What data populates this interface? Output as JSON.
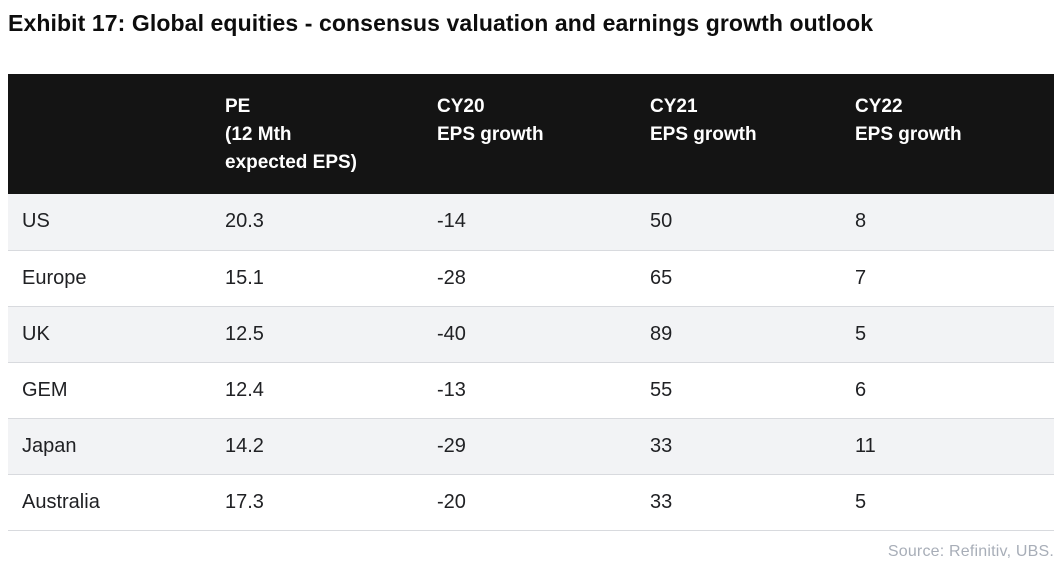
{
  "page": {
    "title": "Exhibit 17: Global equities - consensus valuation and earnings growth outlook",
    "source": "Source: Refinitiv, UBS."
  },
  "table": {
    "headers": [
      "",
      "PE\n(12 Mth\nexpected EPS)",
      "CY20\nEPS growth",
      "CY21\nEPS growth",
      "CY22\nEPS growth"
    ],
    "rows": [
      [
        "US",
        "20.3",
        "-14",
        "50",
        "8"
      ],
      [
        "Europe",
        "15.1",
        "-28",
        "65",
        "7"
      ],
      [
        "UK",
        "12.5",
        "-40",
        "89",
        "5"
      ],
      [
        "GEM",
        "12.4",
        "-13",
        "55",
        "6"
      ],
      [
        "Japan",
        "14.2",
        "-29",
        "33",
        "11"
      ],
      [
        "Australia",
        "17.3",
        "-20",
        "33",
        "5"
      ]
    ]
  },
  "chart_data": {
    "type": "table",
    "title": "Exhibit 17: Global equities - consensus valuation and earnings growth outlook",
    "columns": [
      "",
      "PE (12 Mth expected EPS)",
      "CY20 EPS growth",
      "CY21 EPS growth",
      "CY22 EPS growth"
    ],
    "categories": [
      "US",
      "Europe",
      "UK",
      "GEM",
      "Japan",
      "Australia"
    ],
    "series": [
      {
        "name": "PE (12 Mth expected EPS)",
        "values": [
          20.3,
          15.1,
          12.5,
          12.4,
          14.2,
          17.3
        ]
      },
      {
        "name": "CY20 EPS growth",
        "values": [
          -14,
          -28,
          -40,
          -13,
          -29,
          -20
        ]
      },
      {
        "name": "CY21 EPS growth",
        "values": [
          50,
          65,
          89,
          55,
          33,
          33
        ]
      },
      {
        "name": "CY22 EPS growth",
        "values": [
          8,
          7,
          5,
          6,
          11,
          5
        ]
      }
    ],
    "source": "Source: Refinitiv, UBS.",
    "layout": {
      "header_bg": "#141414",
      "header_text": "#ffffff",
      "row_stripe_bg": "#f2f3f5",
      "row_bg": "#ffffff",
      "row_border": "#d8dade",
      "body_text": "#202124",
      "source_text": "#a8aeb8",
      "title_text": "#0d0d0d"
    }
  }
}
